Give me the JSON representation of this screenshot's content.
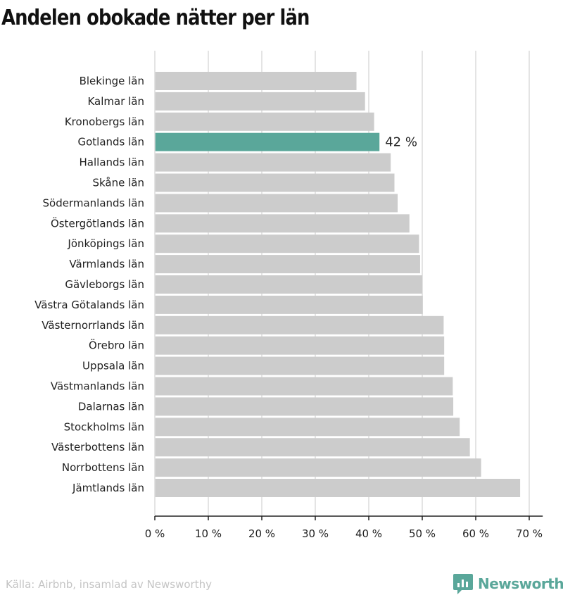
{
  "page": {
    "title": "Andelen obokade nätter per län",
    "source": "Källa: Airbnb, insamlad av Newsworthy",
    "logo_text": "Newsworthy"
  },
  "colors": {
    "bar": "#cccccc",
    "highlight": "#5aa79a",
    "grid": "#dcdcdc",
    "axis": "#222222"
  },
  "chart_data": {
    "type": "bar",
    "orientation": "horizontal",
    "title": "Andelen obokade nätter per län",
    "categories": [
      "Blekinge län",
      "Kalmar län",
      "Kronobergs län",
      "Gotlands län",
      "Hallands län",
      "Skåne län",
      "Södermanlands län",
      "Östergötlands län",
      "Jönköpings län",
      "Värmlands län",
      "Gävleborgs län",
      "Västra Götalands län",
      "Västernorrlands län",
      "Örebro län",
      "Uppsala län",
      "Västmanlands län",
      "Dalarnas län",
      "Stockholms län",
      "Västerbottens län",
      "Norrbottens län",
      "Jämtlands län"
    ],
    "values": [
      37.7,
      39.3,
      41.0,
      42.0,
      44.1,
      44.8,
      45.4,
      47.6,
      49.4,
      49.6,
      50.0,
      50.1,
      54.0,
      54.1,
      54.1,
      55.7,
      55.8,
      57.0,
      58.9,
      61.0,
      68.3
    ],
    "highlight_index": 3,
    "highlight_label": "42 %",
    "xlim": [
      0,
      72
    ],
    "xticks": [
      0,
      10,
      20,
      30,
      40,
      50,
      60,
      70
    ],
    "xtick_labels": [
      "0 %",
      "10 %",
      "20 %",
      "30 %",
      "40 %",
      "50 %",
      "60 %",
      "70 %"
    ],
    "xlabel": "",
    "ylabel": "",
    "grid": true
  }
}
